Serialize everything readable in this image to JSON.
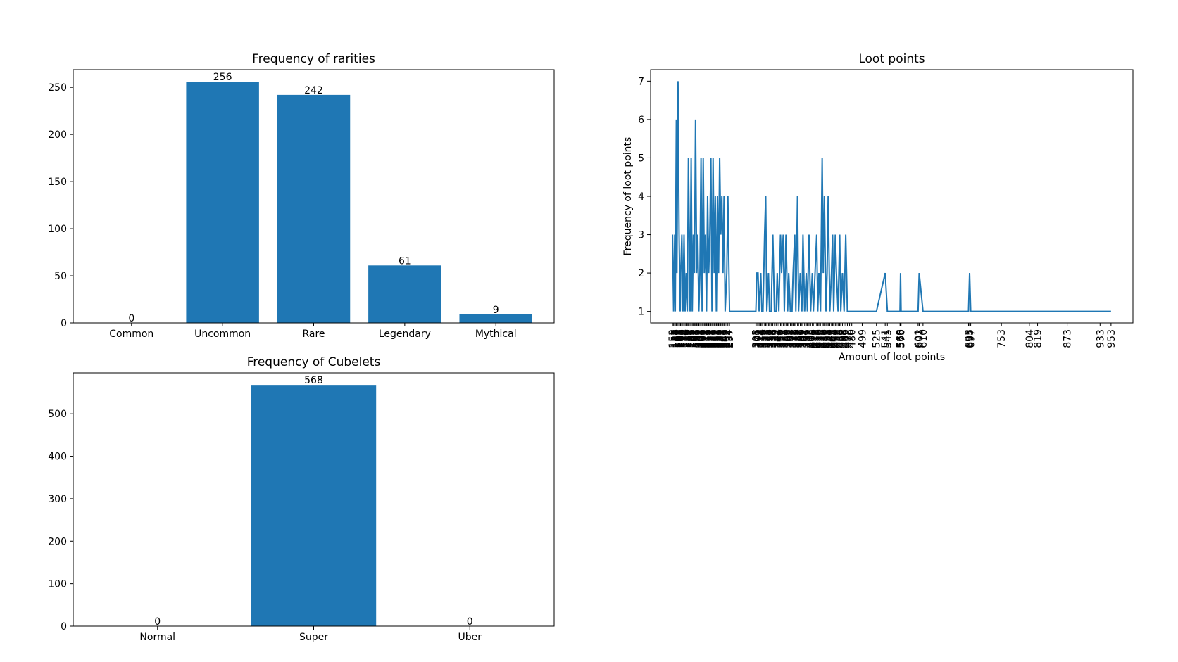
{
  "chart_data": [
    {
      "type": "bar",
      "title": "Frequency of rarities",
      "categories": [
        "Common",
        "Uncommon",
        "Rare",
        "Legendary",
        "Mythical"
      ],
      "values": [
        0,
        256,
        242,
        61,
        9
      ],
      "color": "#1f77b4",
      "ylim": [
        0,
        268.8
      ],
      "yticks": [
        0,
        50,
        100,
        150,
        200,
        250
      ]
    },
    {
      "type": "bar",
      "title": "Frequency of Cubelets",
      "categories": [
        "Normal",
        "Super",
        "Uber"
      ],
      "values": [
        0,
        568,
        0
      ],
      "color": "#1f77b4",
      "ylim": [
        0,
        596.4
      ],
      "yticks": [
        0,
        100,
        200,
        300,
        400,
        500
      ]
    },
    {
      "type": "line",
      "title": "Loot points",
      "x_label": "Amount of loot points",
      "y_label": "Frequency of loot points",
      "color": "#1f77b4",
      "x": [
        153,
        155,
        157,
        158,
        160,
        161,
        163,
        165,
        167,
        168,
        170,
        172,
        174,
        176,
        178,
        180,
        182,
        185,
        187,
        189,
        191,
        193,
        195,
        197,
        199,
        201,
        203,
        205,
        207,
        209,
        211,
        213,
        215,
        217,
        219,
        221,
        223,
        225,
        227,
        229,
        231,
        233,
        235,
        237,
        239,
        241,
        243,
        245,
        247,
        249,
        252,
        254,
        257,
        305,
        307,
        309,
        311,
        314,
        316,
        318,
        321,
        323,
        325,
        328,
        330,
        333,
        336,
        339,
        342,
        344,
        347,
        350,
        352,
        355,
        357,
        360,
        363,
        365,
        368,
        371,
        373,
        376,
        378,
        381,
        383,
        386,
        389,
        391,
        394,
        397,
        399,
        402,
        405,
        408,
        410,
        413,
        416,
        418,
        420,
        423,
        426,
        428,
        430,
        433,
        435,
        437,
        440,
        443,
        445,
        447,
        450,
        452,
        455,
        458,
        460,
        463,
        466,
        469,
        472,
        476,
        480,
        499,
        525,
        541,
        545,
        568,
        569,
        570,
        601,
        603,
        610,
        693,
        695,
        697,
        753,
        804,
        819,
        873,
        933,
        953
      ],
      "values": [
        3,
        1,
        3,
        1,
        6,
        2,
        7,
        3,
        1,
        2,
        3,
        1,
        3,
        1,
        2,
        1,
        5,
        1,
        5,
        1,
        3,
        2,
        6,
        2,
        3,
        1,
        2,
        5,
        1,
        5,
        2,
        3,
        1,
        4,
        2,
        3,
        5,
        1,
        5,
        2,
        4,
        1,
        4,
        2,
        5,
        3,
        4,
        2,
        4,
        1,
        2,
        4,
        1,
        1,
        2,
        2,
        1,
        2,
        1,
        1,
        3,
        4,
        1,
        2,
        1,
        1,
        3,
        1,
        1,
        2,
        1,
        3,
        2,
        3,
        1,
        3,
        1,
        2,
        1,
        1,
        2,
        3,
        1,
        4,
        1,
        2,
        1,
        3,
        1,
        2,
        1,
        3,
        1,
        2,
        1,
        2,
        3,
        1,
        2,
        1,
        5,
        2,
        4,
        1,
        2,
        4,
        1,
        2,
        3,
        1,
        3,
        2,
        1,
        3,
        1,
        2,
        1,
        3,
        1,
        1,
        1,
        1,
        1,
        2,
        1,
        1,
        2,
        1,
        1,
        2,
        1,
        1,
        2,
        1,
        1,
        1,
        1,
        1,
        1,
        1
      ],
      "xticks": [
        153,
        155,
        157,
        158,
        160,
        161,
        163,
        165,
        167,
        168,
        170,
        172,
        174,
        176,
        178,
        180,
        182,
        185,
        187,
        189,
        191,
        193,
        195,
        197,
        199,
        201,
        203,
        205,
        207,
        209,
        211,
        213,
        215,
        217,
        219,
        221,
        223,
        225,
        227,
        229,
        231,
        233,
        235,
        237,
        239,
        241,
        243,
        245,
        247,
        249,
        252,
        254,
        257,
        305,
        307,
        309,
        311,
        314,
        316,
        318,
        321,
        323,
        325,
        328,
        330,
        333,
        336,
        339,
        342,
        344,
        347,
        350,
        352,
        355,
        357,
        360,
        363,
        365,
        368,
        371,
        373,
        376,
        378,
        381,
        383,
        386,
        389,
        391,
        394,
        397,
        399,
        402,
        405,
        408,
        410,
        413,
        416,
        418,
        420,
        423,
        426,
        428,
        430,
        433,
        435,
        437,
        440,
        443,
        445,
        447,
        450,
        452,
        455,
        458,
        460,
        463,
        466,
        469,
        472,
        476,
        480,
        499,
        525,
        541,
        545,
        568,
        569,
        570,
        601,
        603,
        610,
        693,
        695,
        697,
        753,
        804,
        819,
        873,
        933,
        953
      ],
      "xlim": [
        113,
        993
      ],
      "ylim": [
        0.7,
        7.3
      ],
      "yticks": [
        1,
        2,
        3,
        4,
        5,
        6,
        7
      ]
    }
  ]
}
